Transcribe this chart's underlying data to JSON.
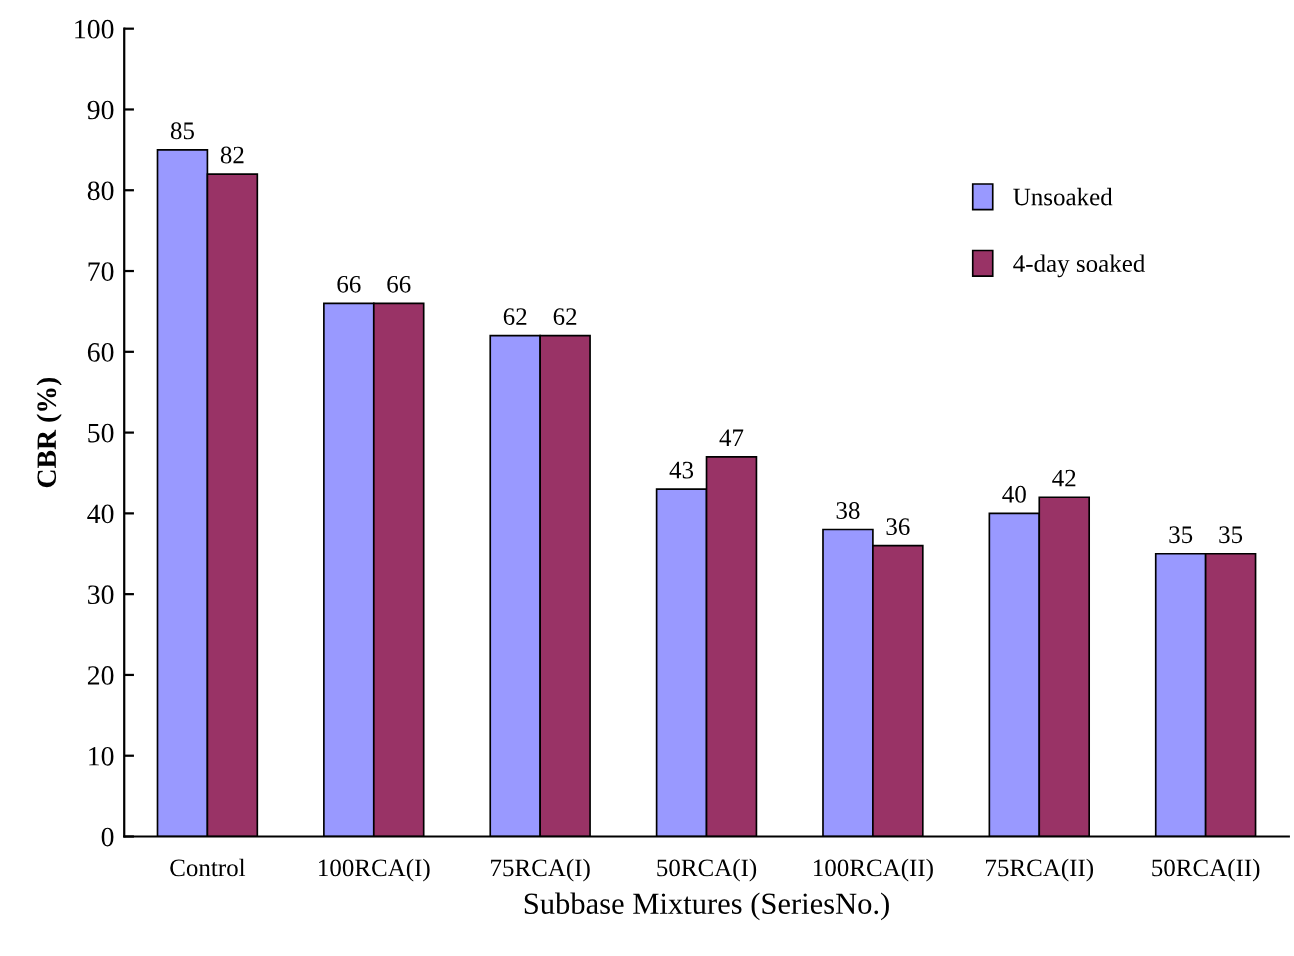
{
  "chart_data": {
    "type": "bar",
    "xlabel": "Subbase Mixtures (SeriesNo.)",
    "ylabel": "CBR (%)",
    "categories": [
      "Control",
      "100RCA(I)",
      "75RCA(I)",
      "50RCA(I)",
      "100RCA(II)",
      "75RCA(II)",
      "50RCA(II)"
    ],
    "series": [
      {
        "name": "Unsoaked",
        "color": "#9999ff",
        "values": [
          85,
          66,
          62,
          43,
          38,
          40,
          35
        ]
      },
      {
        "name": "4-day soaked",
        "color": "#993366",
        "values": [
          82,
          66,
          62,
          47,
          36,
          42,
          35
        ]
      }
    ],
    "ylim": [
      0,
      100
    ],
    "yticks": [
      0,
      10,
      20,
      30,
      40,
      50,
      60,
      70,
      80,
      90,
      100
    ],
    "grid": false,
    "legend": "top right",
    "data_labels": true
  }
}
